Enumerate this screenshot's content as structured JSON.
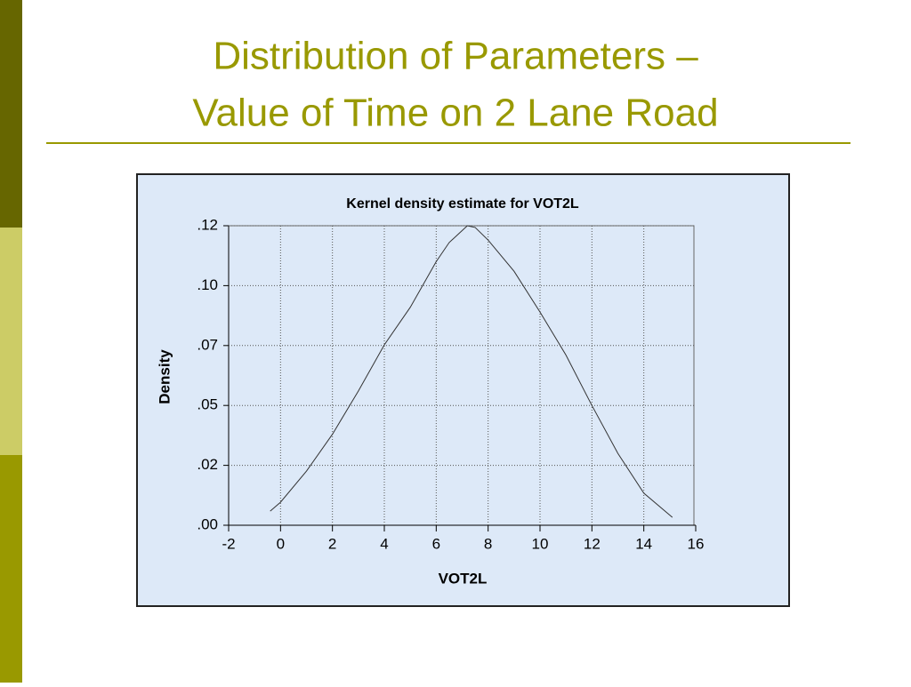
{
  "slide_title": [
    "Distribution of Parameters –",
    "Value of Time on 2 Lane Road"
  ],
  "chart_data": {
    "type": "line",
    "title": "Kernel density estimate for VOT2L",
    "xlabel": "VOT2L",
    "ylabel": "Density",
    "x": [
      -0.4,
      0,
      1,
      2,
      3,
      4,
      5,
      6,
      6.5,
      7.2,
      7.5,
      8,
      9,
      10,
      11,
      12,
      13,
      14,
      15.1
    ],
    "values": [
      0.0059,
      0.0096,
      0.0226,
      0.038,
      0.056,
      0.0753,
      0.091,
      0.11,
      0.118,
      0.125,
      0.1243,
      0.119,
      0.106,
      0.089,
      0.071,
      0.05,
      0.03,
      0.0134,
      0.0033
    ],
    "color": "#333333",
    "xlim": [
      -2,
      16
    ],
    "xticks": [
      -2,
      0,
      2,
      4,
      6,
      8,
      10,
      12,
      14,
      16
    ],
    "ylim": [
      0,
      0.125
    ],
    "yticks": [
      {
        "value": 0,
        "label": ".00"
      },
      {
        "value": 0.025,
        "label": ".02"
      },
      {
        "value": 0.05,
        "label": ".05"
      },
      {
        "value": 0.075,
        "label": ".07"
      },
      {
        "value": 0.1,
        "label": ".10"
      },
      {
        "value": 0.125,
        "label": ".12"
      }
    ],
    "grid": true
  }
}
